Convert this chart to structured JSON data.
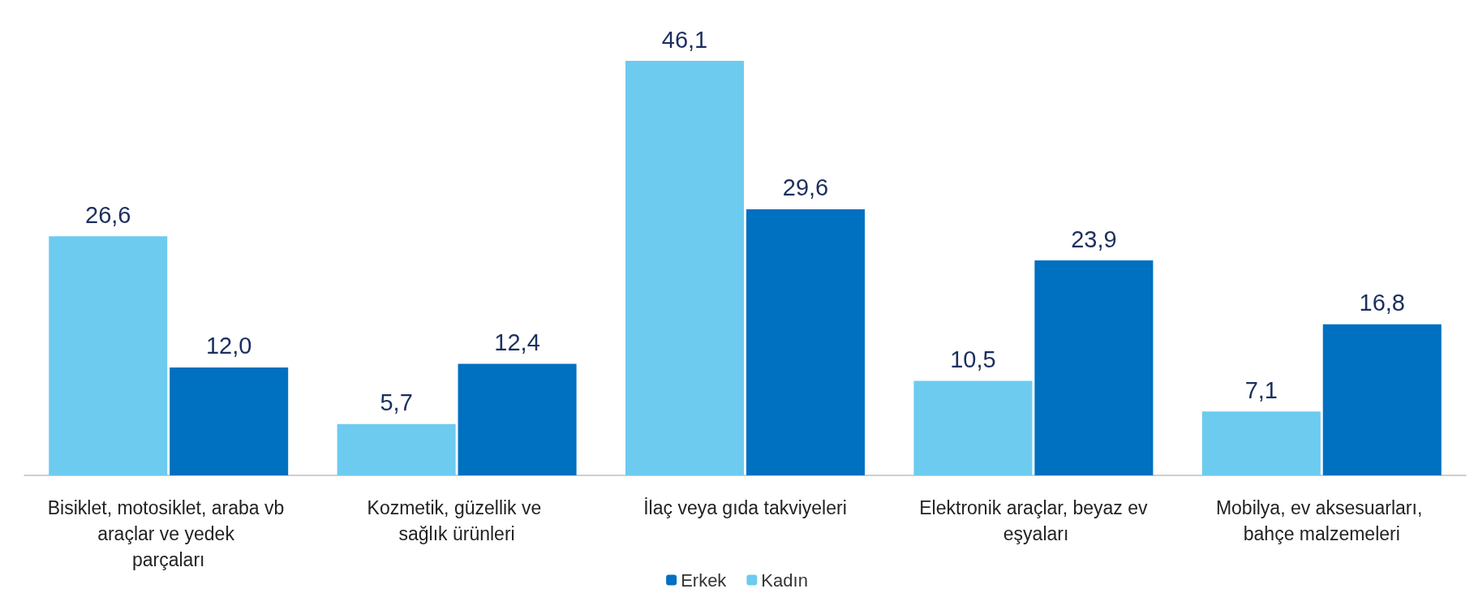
{
  "chart_data": {
    "type": "bar",
    "categories": [
      "Bisiklet, motosiklet, araba vb araçlar ve yedek parçaları",
      "Kozmetik, güzellik ve sağlık ürünleri",
      "İlaç veya gıda takviyeleri",
      "Elektronik araçlar, beyaz ev eşyaları",
      "Mobilya, ev aksesuarları, bahçe malzemeleri"
    ],
    "series": [
      {
        "name": "Kadın",
        "color": "#6dcbf0",
        "values": [
          26.6,
          5.7,
          46.1,
          10.5,
          7.1
        ],
        "value_labels": [
          "26,6",
          "5,7",
          "46,1",
          "10,5",
          "7,1"
        ]
      },
      {
        "name": "Erkek",
        "color": "#0070c0",
        "values": [
          12.0,
          12.4,
          29.6,
          23.9,
          16.8
        ],
        "value_labels": [
          "12,0",
          "12,4",
          "29,6",
          "23,9",
          "16,8"
        ]
      }
    ],
    "legend": "bottom"
  }
}
